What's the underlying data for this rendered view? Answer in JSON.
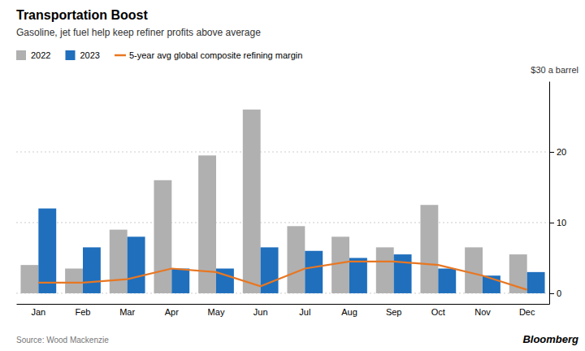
{
  "chart_data": {
    "type": "bar",
    "title": "Transportation Boost",
    "subtitle": "Gasoline, jet fuel help keep refiner profits above average",
    "ylabel": "$30 a barrel",
    "source": "Source: Wood Mackenzie",
    "branding": "Bloomberg",
    "categories": [
      "Jan",
      "Feb",
      "Mar",
      "Apr",
      "May",
      "Jun",
      "Jul",
      "Aug",
      "Sep",
      "Oct",
      "Nov",
      "Dec"
    ],
    "series": [
      {
        "name": "2022",
        "type": "bar",
        "color": "#b0b0b0",
        "values": [
          4.0,
          3.5,
          9.0,
          16.0,
          19.5,
          26.0,
          9.5,
          8.0,
          6.5,
          12.5,
          6.5,
          5.5
        ]
      },
      {
        "name": "2023",
        "type": "bar",
        "color": "#1f6fbd",
        "values": [
          12.0,
          6.5,
          8.0,
          3.5,
          3.5,
          6.5,
          6.0,
          5.0,
          5.5,
          3.5,
          2.5,
          3.0
        ]
      },
      {
        "name": "5-year avg global composite refining margin",
        "type": "line",
        "color": "#e87722",
        "values": [
          1.5,
          1.5,
          2.0,
          3.5,
          3.0,
          1.0,
          3.5,
          4.5,
          4.5,
          4.0,
          2.5,
          0.5
        ]
      }
    ],
    "ylim": [
      -1.5,
      30
    ],
    "yticks": [
      0,
      10,
      20
    ],
    "grid": true,
    "legend": "top"
  }
}
